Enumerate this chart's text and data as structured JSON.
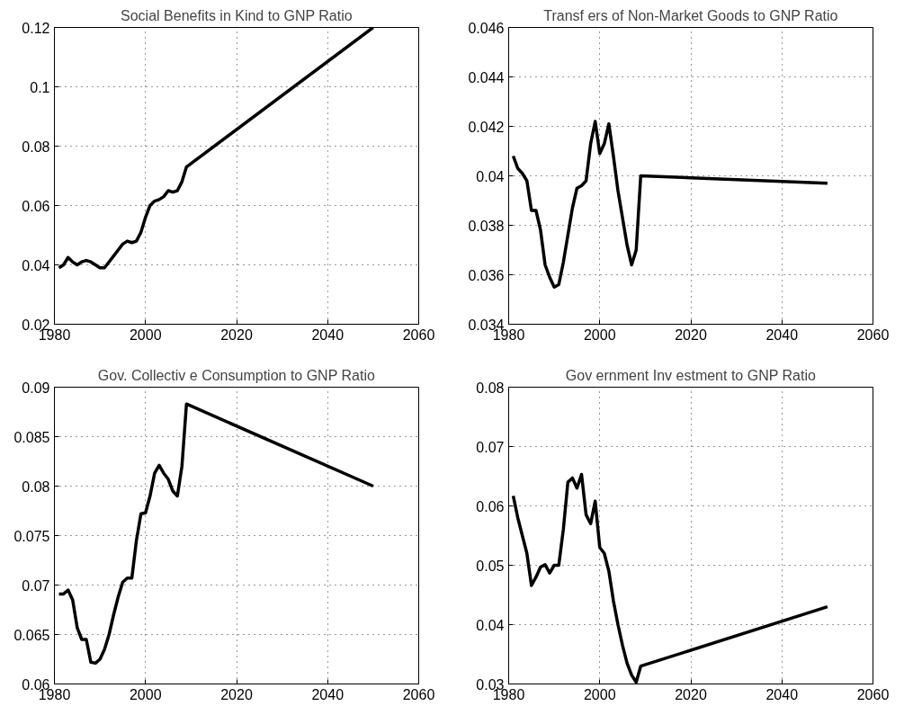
{
  "chart_data": [
    {
      "type": "line",
      "title": "Social Benefits in Kind to GNP Ratio",
      "x": [
        1981,
        1982,
        1983,
        1984,
        1985,
        1986,
        1987,
        1988,
        1989,
        1990,
        1991,
        1992,
        1993,
        1994,
        1995,
        1996,
        1997,
        1998,
        1999,
        2000,
        2001,
        2002,
        2003,
        2004,
        2005,
        2006,
        2007,
        2008,
        2009,
        2050
      ],
      "series": [
        {
          "color": "#000000",
          "values": [
            0.039,
            0.04,
            0.0425,
            0.041,
            0.04,
            0.041,
            0.0415,
            0.041,
            0.04,
            0.039,
            0.039,
            0.041,
            0.043,
            0.045,
            0.047,
            0.048,
            0.0475,
            0.048,
            0.051,
            0.056,
            0.06,
            0.0615,
            0.062,
            0.063,
            0.065,
            0.0645,
            0.065,
            0.068,
            0.073,
            0.12
          ]
        }
      ],
      "xlim": [
        1980,
        2060
      ],
      "xticks": [
        1980,
        2000,
        2020,
        2040,
        2060
      ],
      "ylim": [
        0.02,
        0.12
      ],
      "yticks": [
        0.02,
        0.04,
        0.06,
        0.08,
        0.1,
        0.12
      ],
      "grid": true,
      "line_style": "solid"
    },
    {
      "type": "line",
      "title": "Transf ers of Non-Market Goods to GNP Ratio",
      "x": [
        1981,
        1982,
        1983,
        1984,
        1985,
        1986,
        1987,
        1988,
        1989,
        1990,
        1991,
        1992,
        1993,
        1994,
        1995,
        1996,
        1997,
        1998,
        1999,
        2000,
        2001,
        2002,
        2003,
        2004,
        2005,
        2006,
        2007,
        2008,
        2009,
        2050
      ],
      "series": [
        {
          "color": "#000000",
          "values": [
            0.0408,
            0.0403,
            0.0401,
            0.0398,
            0.0386,
            0.0386,
            0.0378,
            0.0364,
            0.0359,
            0.0355,
            0.0356,
            0.0365,
            0.0376,
            0.0387,
            0.0395,
            0.0396,
            0.0398,
            0.0413,
            0.0422,
            0.0409,
            0.0413,
            0.0421,
            0.0408,
            0.0394,
            0.0383,
            0.0372,
            0.0364,
            0.037,
            0.04,
            0.0397
          ]
        }
      ],
      "xlim": [
        1980,
        2060
      ],
      "xticks": [
        1980,
        2000,
        2020,
        2040,
        2060
      ],
      "ylim": [
        0.034,
        0.046
      ],
      "yticks": [
        0.034,
        0.036,
        0.038,
        0.04,
        0.042,
        0.044,
        0.046
      ],
      "grid": true,
      "line_style": "solid"
    },
    {
      "type": "line",
      "title": "Gov. Collectiv e Consumption to GNP Ratio",
      "x": [
        1981,
        1982,
        1983,
        1984,
        1985,
        1986,
        1987,
        1988,
        1989,
        1990,
        1991,
        1992,
        1993,
        1994,
        1995,
        1996,
        1997,
        1998,
        1999,
        2000,
        2001,
        2002,
        2003,
        2004,
        2005,
        2006,
        2007,
        2008,
        2009,
        2050
      ],
      "series": [
        {
          "color": "#000000",
          "values": [
            0.0691,
            0.0691,
            0.0695,
            0.0685,
            0.0657,
            0.0645,
            0.0645,
            0.0622,
            0.0621,
            0.0625,
            0.0635,
            0.065,
            0.067,
            0.0688,
            0.0703,
            0.0707,
            0.0707,
            0.0745,
            0.0772,
            0.0773,
            0.079,
            0.0813,
            0.0821,
            0.0813,
            0.0807,
            0.0795,
            0.079,
            0.082,
            0.0883,
            0.08
          ]
        }
      ],
      "xlim": [
        1980,
        2060
      ],
      "xticks": [
        1980,
        2000,
        2020,
        2040,
        2060
      ],
      "ylim": [
        0.06,
        0.09
      ],
      "yticks": [
        0.06,
        0.065,
        0.07,
        0.075,
        0.08,
        0.085,
        0.09
      ],
      "grid": true,
      "line_style": "solid"
    },
    {
      "type": "line",
      "title": "Gov ernment Inv estment to GNP Ratio",
      "x": [
        1981,
        1982,
        1983,
        1984,
        1985,
        1986,
        1987,
        1988,
        1989,
        1990,
        1991,
        1992,
        1993,
        1994,
        1995,
        1996,
        1997,
        1998,
        1999,
        2000,
        2001,
        2002,
        2003,
        2004,
        2005,
        2006,
        2007,
        2008,
        2009,
        2050
      ],
      "series": [
        {
          "color": "#000000",
          "values": [
            0.0617,
            0.058,
            0.055,
            0.052,
            0.0466,
            0.048,
            0.0497,
            0.0501,
            0.0487,
            0.05,
            0.05,
            0.056,
            0.064,
            0.0647,
            0.063,
            0.0653,
            0.0585,
            0.057,
            0.0608,
            0.053,
            0.052,
            0.049,
            0.044,
            0.04,
            0.0365,
            0.0335,
            0.0315,
            0.0303,
            0.033,
            0.043
          ]
        }
      ],
      "xlim": [
        1980,
        2060
      ],
      "xticks": [
        1980,
        2000,
        2020,
        2040,
        2060
      ],
      "ylim": [
        0.03,
        0.08
      ],
      "yticks": [
        0.03,
        0.04,
        0.05,
        0.06,
        0.07,
        0.08
      ],
      "grid": true,
      "line_style": "solid"
    }
  ]
}
